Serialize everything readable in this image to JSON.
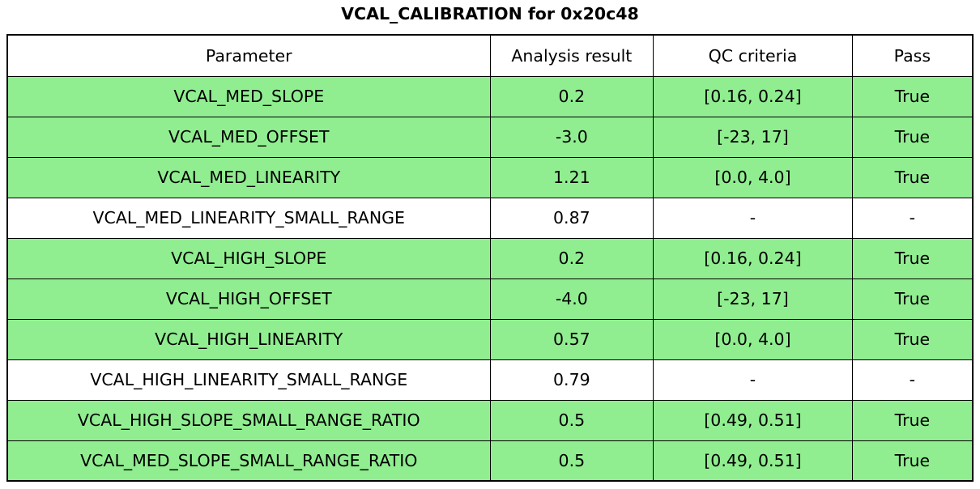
{
  "title": "VCAL_CALIBRATION for 0x20c48",
  "colors": {
    "row_pass_green": "#90ee90",
    "row_neutral_white": "#ffffff",
    "border": "#000000",
    "text": "#000000",
    "background": "#ffffff"
  },
  "chart_data": {
    "type": "table",
    "title": "VCAL_CALIBRATION for 0x20c48",
    "columns": [
      "Parameter",
      "Analysis result",
      "QC criteria",
      "Pass"
    ],
    "rows": [
      {
        "cells": [
          "VCAL_MED_SLOPE",
          "0.2",
          "[0.16, 0.24]",
          "True"
        ],
        "highlighted": true
      },
      {
        "cells": [
          "VCAL_MED_OFFSET",
          "-3.0",
          "[-23, 17]",
          "True"
        ],
        "highlighted": true
      },
      {
        "cells": [
          "VCAL_MED_LINEARITY",
          "1.21",
          "[0.0, 4.0]",
          "True"
        ],
        "highlighted": true
      },
      {
        "cells": [
          "VCAL_MED_LINEARITY_SMALL_RANGE",
          "0.87",
          "-",
          "-"
        ],
        "highlighted": false
      },
      {
        "cells": [
          "VCAL_HIGH_SLOPE",
          "0.2",
          "[0.16, 0.24]",
          "True"
        ],
        "highlighted": true
      },
      {
        "cells": [
          "VCAL_HIGH_OFFSET",
          "-4.0",
          "[-23, 17]",
          "True"
        ],
        "highlighted": true
      },
      {
        "cells": [
          "VCAL_HIGH_LINEARITY",
          "0.57",
          "[0.0, 4.0]",
          "True"
        ],
        "highlighted": true
      },
      {
        "cells": [
          "VCAL_HIGH_LINEARITY_SMALL_RANGE",
          "0.79",
          "-",
          "-"
        ],
        "highlighted": false
      },
      {
        "cells": [
          "VCAL_HIGH_SLOPE_SMALL_RANGE_RATIO",
          "0.5",
          "[0.49, 0.51]",
          "True"
        ],
        "highlighted": true
      },
      {
        "cells": [
          "VCAL_MED_SLOPE_SMALL_RANGE_RATIO",
          "0.5",
          "[0.49, 0.51]",
          "True"
        ],
        "highlighted": true
      }
    ]
  }
}
